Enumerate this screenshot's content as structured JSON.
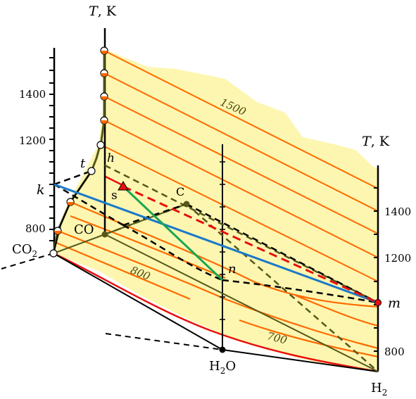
{
  "axes": {
    "left": {
      "title_sym": "T",
      "title_unit": ", K",
      "ticks": [
        "1400",
        "1200",
        "800"
      ]
    },
    "right": {
      "title_sym": "T",
      "title_unit": ", K",
      "ticks": [
        "1400",
        "1200",
        "800"
      ]
    }
  },
  "labels": {
    "co2": "CO",
    "co2_sub": "2",
    "co": "CO",
    "h2o": "H",
    "h2o_sub": "2",
    "h2o_tail": "O",
    "h2": "H",
    "h2_sub": "2",
    "k": "k",
    "t": "t",
    "h": "h",
    "s": "s",
    "c": "C",
    "n": "n",
    "m": "m"
  },
  "isotherm_labels": [
    "1500",
    "800",
    "700"
  ],
  "colors": {
    "surface_fill": "#fdf6b0",
    "isotherm": "#ff6a00",
    "boundary_red": "#e8100a",
    "olive": "#55581a",
    "blue": "#1b79c9",
    "green": "#1aa653",
    "dash_red": "#e8100a"
  }
}
